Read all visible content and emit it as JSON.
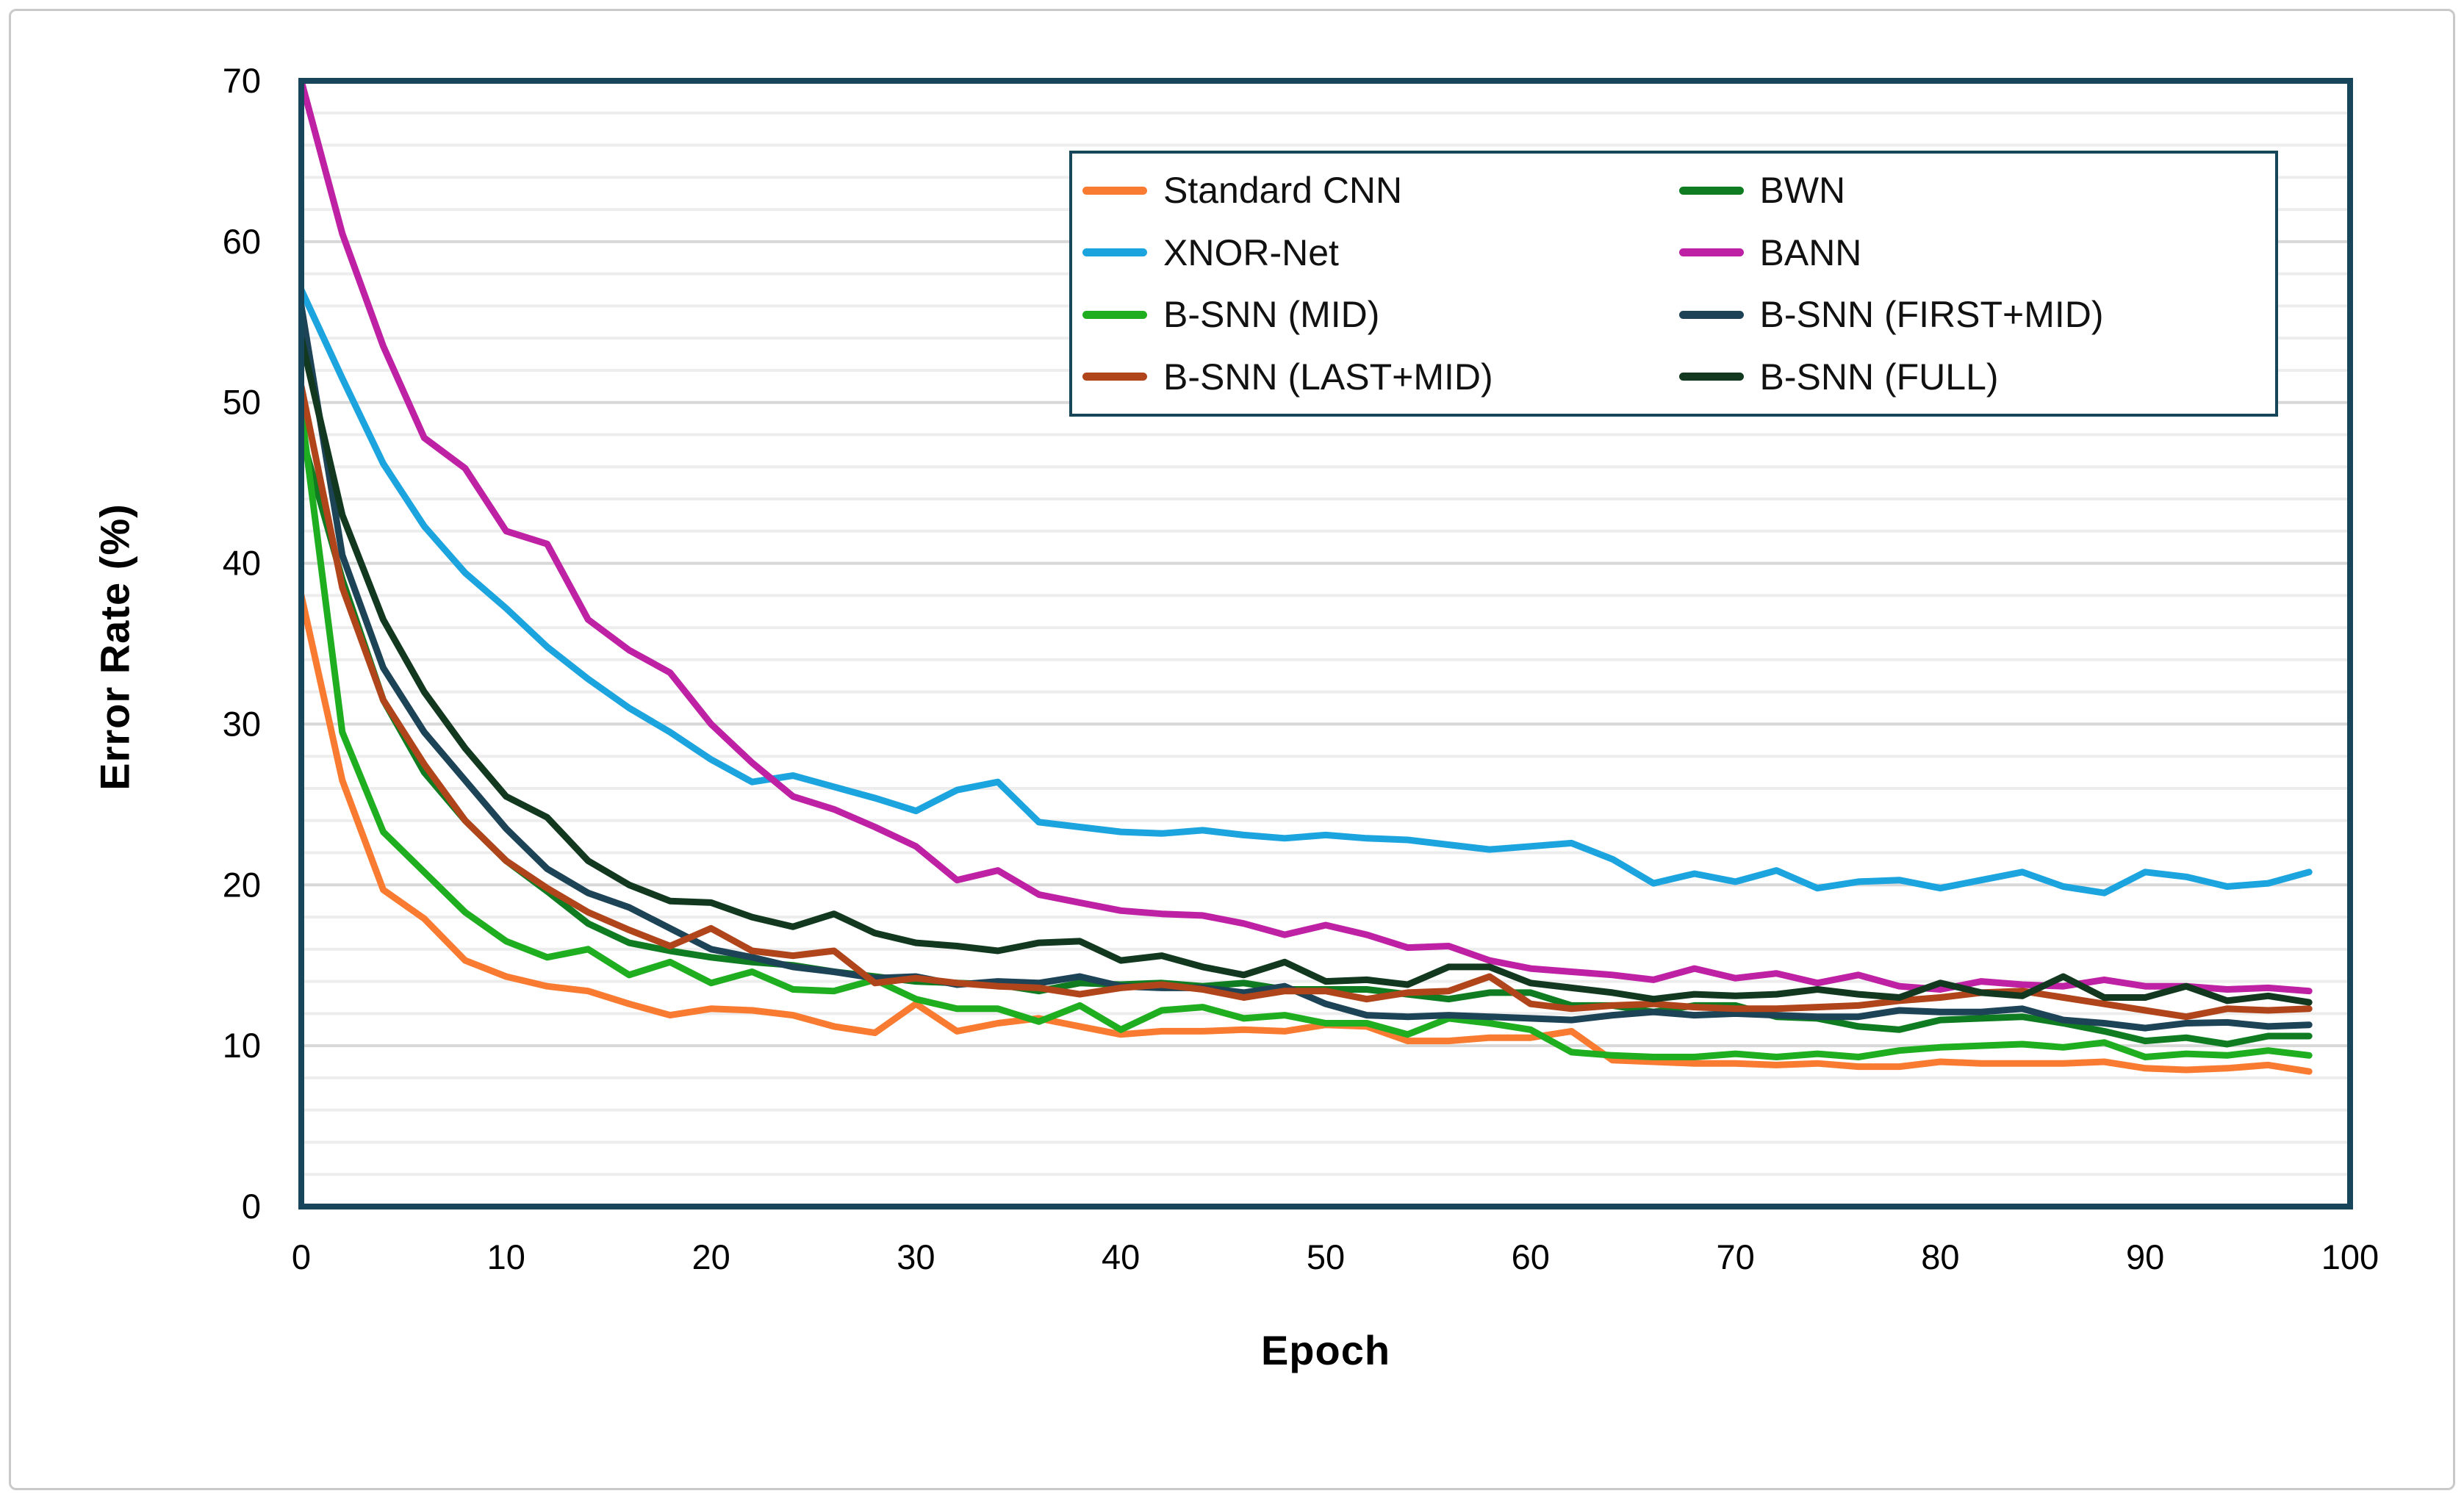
{
  "figure": {
    "background": "#ffffff",
    "frame_border_color": "#c9c9c9",
    "plot_border_color": "#17465a",
    "gridline_minor_color": "#ededed",
    "gridline_major_color": "#d8d8d8"
  },
  "chart_data": {
    "type": "line",
    "title": "",
    "xlabel": "Epoch",
    "ylabel": "Error Rate (%)",
    "xlim": [
      0,
      100
    ],
    "ylim": [
      0,
      70
    ],
    "x_ticks": [
      0,
      10,
      20,
      30,
      40,
      50,
      60,
      70,
      80,
      90,
      100
    ],
    "y_ticks": [
      0,
      10,
      20,
      30,
      40,
      50,
      60,
      70
    ],
    "grid": {
      "minor_step": 2,
      "major_step": 10,
      "vertical": false
    },
    "legend_position": "inside-top",
    "x_start": 0,
    "x_step": 2,
    "series": [
      {
        "name": "Standard CNN",
        "slug": "standard-cnn",
        "color": "#f97b31",
        "values": [
          38,
          26.5,
          19.7,
          17.9,
          15.3,
          14.3,
          13.7,
          13.4,
          12.6,
          11.9,
          12.3,
          12.2,
          11.9,
          11.2,
          10.8,
          12.6,
          10.9,
          11.4,
          11.7,
          11.2,
          10.7,
          10.9,
          10.9,
          11,
          10.9,
          11.3,
          11.2,
          10.3,
          10.3,
          10.5,
          10.5,
          10.9,
          9.1,
          9,
          8.9,
          8.9,
          8.8,
          8.9,
          8.7,
          8.7,
          9,
          8.9,
          8.9,
          8.9,
          9,
          8.6,
          8.5,
          8.6,
          8.8,
          8.4
        ]
      },
      {
        "name": "BWN",
        "slug": "bwn",
        "color": "#0f7c22",
        "values": [
          48,
          39,
          31.5,
          27,
          24,
          21.5,
          19.6,
          17.6,
          16.4,
          15.9,
          15.5,
          15.2,
          15,
          14.6,
          14.3,
          14,
          13.9,
          13.8,
          13.4,
          13.9,
          13.8,
          13.9,
          13.7,
          13.9,
          13.5,
          13.5,
          13.5,
          13.2,
          12.9,
          13.3,
          13.3,
          12.5,
          12.5,
          12.1,
          12.5,
          12.5,
          11.8,
          11.7,
          11.2,
          11,
          11.6,
          11.7,
          11.8,
          11.4,
          10.9,
          10.3,
          10.5,
          10.1,
          10.6,
          10.6
        ]
      },
      {
        "name": "XNOR-Net",
        "slug": "xnor-net",
        "color": "#1ca4de",
        "values": [
          57,
          51.5,
          46.2,
          42.3,
          39.4,
          37.2,
          34.8,
          32.8,
          31,
          29.5,
          27.8,
          26.4,
          26.8,
          26.1,
          25.4,
          24.6,
          25.9,
          26.4,
          23.9,
          23.6,
          23.3,
          23.2,
          23.4,
          23.1,
          22.9,
          23.1,
          22.9,
          22.8,
          22.5,
          22.2,
          22.4,
          22.6,
          21.6,
          20.1,
          20.7,
          20.2,
          20.9,
          19.8,
          20.2,
          20.3,
          19.8,
          20.3,
          20.8,
          19.9,
          19.5,
          20.8,
          20.5,
          19.9,
          20.1,
          20.8
        ]
      },
      {
        "name": "BANN",
        "slug": "bann",
        "color": "#be21a3",
        "values": [
          70,
          60.5,
          53.5,
          47.8,
          45.9,
          42,
          41.2,
          36.5,
          34.6,
          33.2,
          30,
          27.6,
          25.5,
          24.7,
          23.6,
          22.4,
          20.3,
          20.9,
          19.4,
          18.9,
          18.4,
          18.2,
          18.1,
          17.6,
          16.9,
          17.5,
          16.9,
          16.1,
          16.2,
          15.3,
          14.8,
          14.6,
          14.4,
          14.1,
          14.8,
          14.2,
          14.5,
          13.9,
          14.4,
          13.7,
          13.5,
          14,
          13.8,
          13.7,
          14.1,
          13.7,
          13.7,
          13.5,
          13.6,
          13.4
        ]
      },
      {
        "name": "B-SNN (MID)",
        "slug": "bsnn-mid",
        "color": "#1fae1f",
        "values": [
          49.5,
          29.5,
          23.3,
          20.8,
          18.3,
          16.5,
          15.5,
          16,
          14.4,
          15.2,
          13.9,
          14.6,
          13.5,
          13.4,
          14.1,
          12.9,
          12.3,
          12.3,
          11.5,
          12.5,
          11,
          12.2,
          12.4,
          11.7,
          11.9,
          11.4,
          11.4,
          10.7,
          11.7,
          11.4,
          11,
          9.6,
          9.4,
          9.3,
          9.3,
          9.5,
          9.3,
          9.5,
          9.3,
          9.7,
          9.9,
          10,
          10.1,
          9.9,
          10.2,
          9.3,
          9.5,
          9.4,
          9.7,
          9.4
        ]
      },
      {
        "name": "B-SNN (FIRST+MID)",
        "slug": "bsnn-first-mid",
        "color": "#1d4356",
        "values": [
          56,
          40.5,
          33.5,
          29.5,
          26.5,
          23.5,
          21,
          19.5,
          18.6,
          17.3,
          16,
          15.5,
          14.9,
          14.6,
          14.2,
          14.3,
          13.8,
          14,
          13.9,
          14.3,
          13.7,
          13.6,
          13.6,
          13.3,
          13.7,
          12.6,
          11.9,
          11.8,
          11.9,
          11.8,
          11.7,
          11.6,
          11.9,
          12.1,
          11.9,
          12,
          11.9,
          11.8,
          11.8,
          12.2,
          12.1,
          12.1,
          12.3,
          11.6,
          11.4,
          11.1,
          11.4,
          11.45,
          11.2,
          11.3
        ]
      },
      {
        "name": "B-SNN (LAST+MID)",
        "slug": "bsnn-last-mid",
        "color": "#b0451b",
        "values": [
          51,
          38.5,
          31.5,
          27.5,
          24,
          21.5,
          19.8,
          18.3,
          17.2,
          16.2,
          17.3,
          15.9,
          15.6,
          15.9,
          13.9,
          14.2,
          13.9,
          13.7,
          13.6,
          13.2,
          13.6,
          13.8,
          13.5,
          13,
          13.4,
          13.4,
          12.9,
          13.3,
          13.4,
          14.3,
          12.6,
          12.3,
          12.5,
          12.6,
          12.4,
          12.3,
          12.3,
          12.4,
          12.5,
          12.8,
          13,
          13.3,
          13.4,
          13,
          12.6,
          12.2,
          11.8,
          12.3,
          12.2,
          12.3
        ]
      },
      {
        "name": "B-SNN (FULL)",
        "slug": "bsnn-full",
        "color": "#12391f",
        "values": [
          54,
          43,
          36.5,
          32,
          28.5,
          25.5,
          24.2,
          21.5,
          20,
          19,
          18.9,
          18,
          17.4,
          18.2,
          17,
          16.4,
          16.2,
          15.9,
          16.4,
          16.5,
          15.3,
          15.6,
          14.9,
          14.4,
          15.2,
          14,
          14.1,
          13.8,
          14.9,
          14.9,
          13.9,
          13.6,
          13.3,
          12.9,
          13.2,
          13.1,
          13.2,
          13.5,
          13.2,
          13,
          13.9,
          13.3,
          13.1,
          14.3,
          13,
          13,
          13.7,
          12.8,
          13.1,
          12.7
        ]
      }
    ],
    "legend_order": [
      "Standard CNN",
      "BWN",
      "XNOR-Net",
      "BANN",
      "B-SNN (MID)",
      "B-SNN (FIRST+MID)",
      "B-SNN (LAST+MID)",
      "B-SNN (FULL)"
    ]
  }
}
